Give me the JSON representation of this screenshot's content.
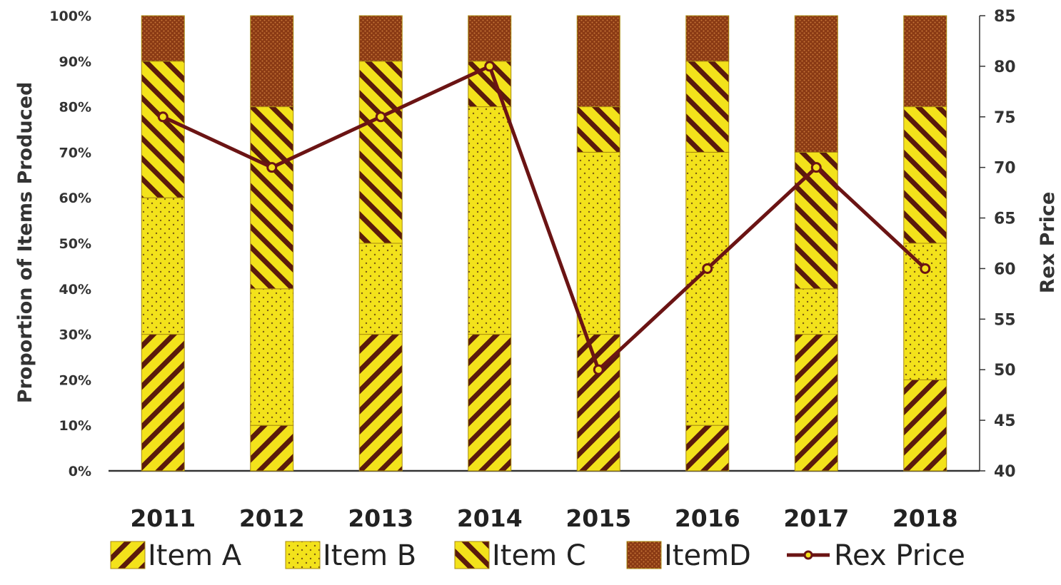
{
  "chart_data": {
    "type": "bar",
    "stacked": true,
    "categories": [
      "2011",
      "2012",
      "2013",
      "2014",
      "2015",
      "2016",
      "2017",
      "2018"
    ],
    "series": [
      {
        "name": "Item A",
        "pattern": "back-diagonal",
        "values": [
          30,
          10,
          30,
          30,
          30,
          10,
          30,
          20
        ]
      },
      {
        "name": "Item B",
        "pattern": "dots",
        "values": [
          30,
          30,
          20,
          50,
          40,
          60,
          10,
          30
        ]
      },
      {
        "name": "Item C",
        "pattern": "forward-diagonal",
        "values": [
          30,
          40,
          40,
          10,
          10,
          20,
          30,
          30
        ]
      },
      {
        "name": "ItemD",
        "pattern": "dense-dots",
        "values": [
          10,
          20,
          10,
          10,
          20,
          10,
          30,
          20
        ]
      }
    ],
    "line_series": {
      "name": "Rex Price",
      "axis": "right",
      "values": [
        75,
        70,
        75,
        80,
        50,
        60,
        70,
        60
      ]
    },
    "ylabel": "Proportion of Items Produced",
    "y2label": "Rex Price",
    "ylim": [
      0,
      100
    ],
    "y2lim": [
      40,
      85
    ],
    "yticks": [
      "0%",
      "10%",
      "20%",
      "30%",
      "40%",
      "50%",
      "60%",
      "70%",
      "80%",
      "90%",
      "100%"
    ],
    "y2ticks": [
      "40",
      "45",
      "50",
      "55",
      "60",
      "65",
      "70",
      "75",
      "80",
      "85"
    ],
    "legend_position": "bottom",
    "colors": {
      "fill": "#f3e21b",
      "stripe": "#5a1a0c",
      "dot": "#7a5a14",
      "itemd": "#8a3a14",
      "itemd_dot": "#c87838",
      "line": "#6b1414",
      "marker": "#f3e21b",
      "axis": "#333333"
    }
  }
}
